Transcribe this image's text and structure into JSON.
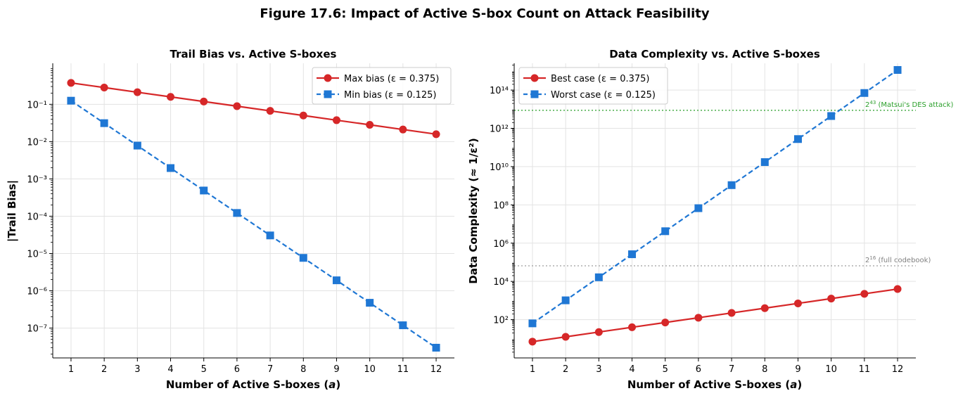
{
  "figure_title": "Figure 17.6: Impact of Active S-box Count on Attack Feasibility",
  "colors": {
    "red": "#d62728",
    "blue": "#1f77d4",
    "green": "#2ca02c",
    "gray": "#a0a0a0"
  },
  "chart_data": [
    {
      "type": "line",
      "title": "Trail Bias vs. Active S-boxes",
      "xlabel": "Number of Active S-boxes (a)",
      "ylabel": "|Trail Bias|",
      "yscale": "log",
      "ylim_log10": [
        -7.8,
        0.1
      ],
      "xlim": [
        0.45,
        12.55
      ],
      "x": [
        1,
        2,
        3,
        4,
        5,
        6,
        7,
        8,
        9,
        10,
        11,
        12
      ],
      "x_ticks": [
        1,
        2,
        3,
        4,
        5,
        6,
        7,
        8,
        9,
        10,
        11,
        12
      ],
      "y_tick_exponents": [
        -1,
        -2,
        -3,
        -4,
        -5,
        -6,
        -7
      ],
      "legend_position": "top-right",
      "series": [
        {
          "name": "Max bias (ε = 0.375)",
          "color": "#d62728",
          "marker": "circle",
          "dashed": false,
          "values": [
            0.375,
            0.28125,
            0.2109,
            0.1582,
            0.1187,
            0.089,
            0.0667,
            0.0501,
            0.0375,
            0.0282,
            0.0211,
            0.0158
          ]
        },
        {
          "name": "Min bias (ε = 0.125)",
          "color": "#1f77d4",
          "marker": "square",
          "dashed": true,
          "values": [
            0.125,
            0.03125,
            0.0078125,
            0.001953,
            0.000488,
            0.000122,
            3.05e-05,
            7.63e-06,
            1.91e-06,
            4.77e-07,
            1.19e-07,
            2.98e-08
          ]
        }
      ]
    },
    {
      "type": "line",
      "title": "Data Complexity vs. Active S-boxes",
      "xlabel": "Number of Active S-boxes (a)",
      "ylabel": "Data Complexity (≈ 1/ε²)",
      "yscale": "log",
      "ylim_log10": [
        0.0,
        15.4
      ],
      "xlim": [
        0.45,
        12.55
      ],
      "x": [
        1,
        2,
        3,
        4,
        5,
        6,
        7,
        8,
        9,
        10,
        11,
        12
      ],
      "x_ticks": [
        1,
        2,
        3,
        4,
        5,
        6,
        7,
        8,
        9,
        10,
        11,
        12
      ],
      "y_tick_exponents": [
        2,
        4,
        6,
        8,
        10,
        12,
        14
      ],
      "legend_position": "top-left",
      "series": [
        {
          "name": "Best case (ε = 0.375)",
          "color": "#d62728",
          "marker": "circle",
          "dashed": false,
          "values": [
            7.11,
            12.64,
            22.5,
            40.0,
            71.0,
            126.3,
            224.5,
            399.0,
            709.0,
            1261,
            2242,
            3986
          ]
        },
        {
          "name": "Worst case (ε = 0.125)",
          "color": "#1f77d4",
          "marker": "square",
          "dashed": true,
          "values": [
            64,
            1024,
            16384,
            262144,
            4194304,
            67108864,
            1073741824,
            17179869184,
            274877906944,
            4398046511104,
            70368744177664,
            1125899906842624
          ]
        }
      ],
      "reference_lines": [
        {
          "label_exp": "43",
          "label": " (Matsui's DES attack)",
          "value_log10": 12.944,
          "color": "#2ca02c"
        },
        {
          "label_exp": "16",
          "label": " (full codebook)",
          "value_log10": 4.816,
          "color": "#a0a0a0"
        }
      ]
    }
  ]
}
